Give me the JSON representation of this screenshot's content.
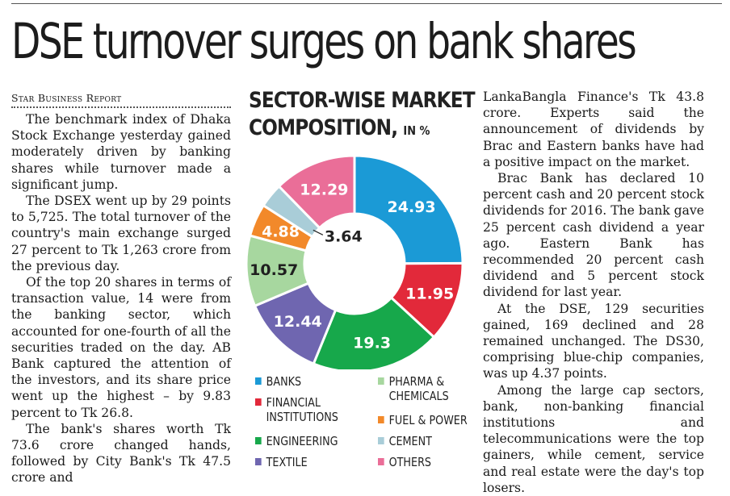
{
  "article": {
    "headline": "DSE turnover surges on bank shares",
    "byline": "Star Business Report",
    "left_paragraphs": [
      "The benchmark index of Dhaka Stock Exchange yesterday gained moderately driven by banking shares while turnover made a significant jump.",
      "The DSEX went up by 29 points to 5,725. The total turnover of the country's main exchange surged 27 percent to Tk 1,263 crore from the previous day.",
      "Of the top 20 shares in terms of transaction value, 14 were from the banking sector, which accounted for one-fourth of all the securities traded on the day. AB Bank captured the attention of the investors, and its share price went up the highest – by 9.83 percent to Tk 26.8.",
      "The bank's shares worth Tk 73.6 crore changed hands, followed by City Bank's Tk 47.5 crore and"
    ],
    "right_paragraphs": [
      "LankaBangla Finance's Tk 43.8 crore. Experts said the announcement of dividends by Brac and Eastern banks have had a positive impact on the market.",
      "Brac Bank has declared 10 percent cash and 20 percent stock dividends for 2016. The bank gave 25 percent cash dividend a year ago. Eastern Bank has recommended 20 percent cash dividend and 5 percent stock dividend for last year.",
      "At the DSE, 129 securities gained, 169 declined and 28 remained unchanged. The DS30, comprising blue-chip companies, was up 4.37 points.",
      "Among the large cap sectors, bank, non-banking financial institutions and telecommunications were the top gainers, while cement, service and real estate were the day's top losers."
    ]
  },
  "chart_data": {
    "type": "pie",
    "title_line1": "SECTOR-WISE MARKET",
    "title_line2": "COMPOSITION,",
    "title_unit": "IN %",
    "slices": [
      {
        "label": "BANKS",
        "value": 24.93,
        "display": "24.93",
        "color": "#1b9ad6"
      },
      {
        "label": "FINANCIAL INSTITUTIONS",
        "value": 11.95,
        "display": "11.95",
        "color": "#e2293a"
      },
      {
        "label": "ENGINEERING",
        "value": 19.3,
        "display": "19.3",
        "color": "#17a84b"
      },
      {
        "label": "TEXTILE",
        "value": 12.44,
        "display": "12.44",
        "color": "#6f66b0"
      },
      {
        "label": "PHARMA & CHEMICALS",
        "value": 10.57,
        "display": "10.57",
        "color": "#a7d79f"
      },
      {
        "label": "FUEL & POWER",
        "value": 4.88,
        "display": "4.88",
        "color": "#f2892a"
      },
      {
        "label": "CEMENT",
        "value": 3.64,
        "display": "3.64",
        "color": "#a9cdd8"
      },
      {
        "label": "OTHERS",
        "value": 12.29,
        "display": "12.29",
        "color": "#ea6e98"
      }
    ],
    "legend": [
      {
        "lines": [
          "BANKS"
        ],
        "color": "#1b9ad6"
      },
      {
        "lines": [
          "FINANCIAL",
          "INSTITUTIONS"
        ],
        "color": "#e2293a"
      },
      {
        "lines": [
          "ENGINEERING"
        ],
        "color": "#17a84b"
      },
      {
        "lines": [
          "TEXTILE"
        ],
        "color": "#6f66b0"
      },
      {
        "lines": [
          "PHARMA &",
          "CHEMICALS"
        ],
        "color": "#a7d79f"
      },
      {
        "lines": [
          "FUEL & POWER"
        ],
        "color": "#f2892a"
      },
      {
        "lines": [
          "CEMENT"
        ],
        "color": "#a9cdd8"
      },
      {
        "lines": [
          "OTHERS"
        ],
        "color": "#ea6e98"
      }
    ]
  }
}
